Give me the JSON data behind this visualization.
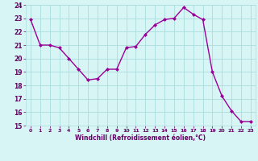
{
  "x": [
    0,
    1,
    2,
    3,
    4,
    5,
    6,
    7,
    8,
    9,
    10,
    11,
    12,
    13,
    14,
    15,
    16,
    17,
    18,
    19,
    20,
    21,
    22,
    23
  ],
  "y": [
    22.9,
    21.0,
    21.0,
    20.8,
    20.0,
    19.2,
    18.4,
    18.5,
    19.2,
    19.2,
    20.8,
    20.9,
    21.8,
    22.5,
    22.9,
    23.0,
    23.8,
    23.3,
    22.9,
    19.0,
    17.2,
    16.1,
    15.3,
    15.3
  ],
  "line_color": "#990099",
  "marker": "D",
  "marker_size": 2,
  "bg_color": "#d8f5f5",
  "grid_color": "#aadddd",
  "xlabel": "Windchill (Refroidissement éolien,°C)",
  "xlabel_color": "#660066",
  "tick_color": "#660066",
  "ylim": [
    15,
    24
  ],
  "xlim": [
    -0.5,
    23.5
  ],
  "yticks": [
    15,
    16,
    17,
    18,
    19,
    20,
    21,
    22,
    23,
    24
  ],
  "xticks": [
    0,
    1,
    2,
    3,
    4,
    5,
    6,
    7,
    8,
    9,
    10,
    11,
    12,
    13,
    14,
    15,
    16,
    17,
    18,
    19,
    20,
    21,
    22,
    23
  ],
  "line_width": 1.0
}
